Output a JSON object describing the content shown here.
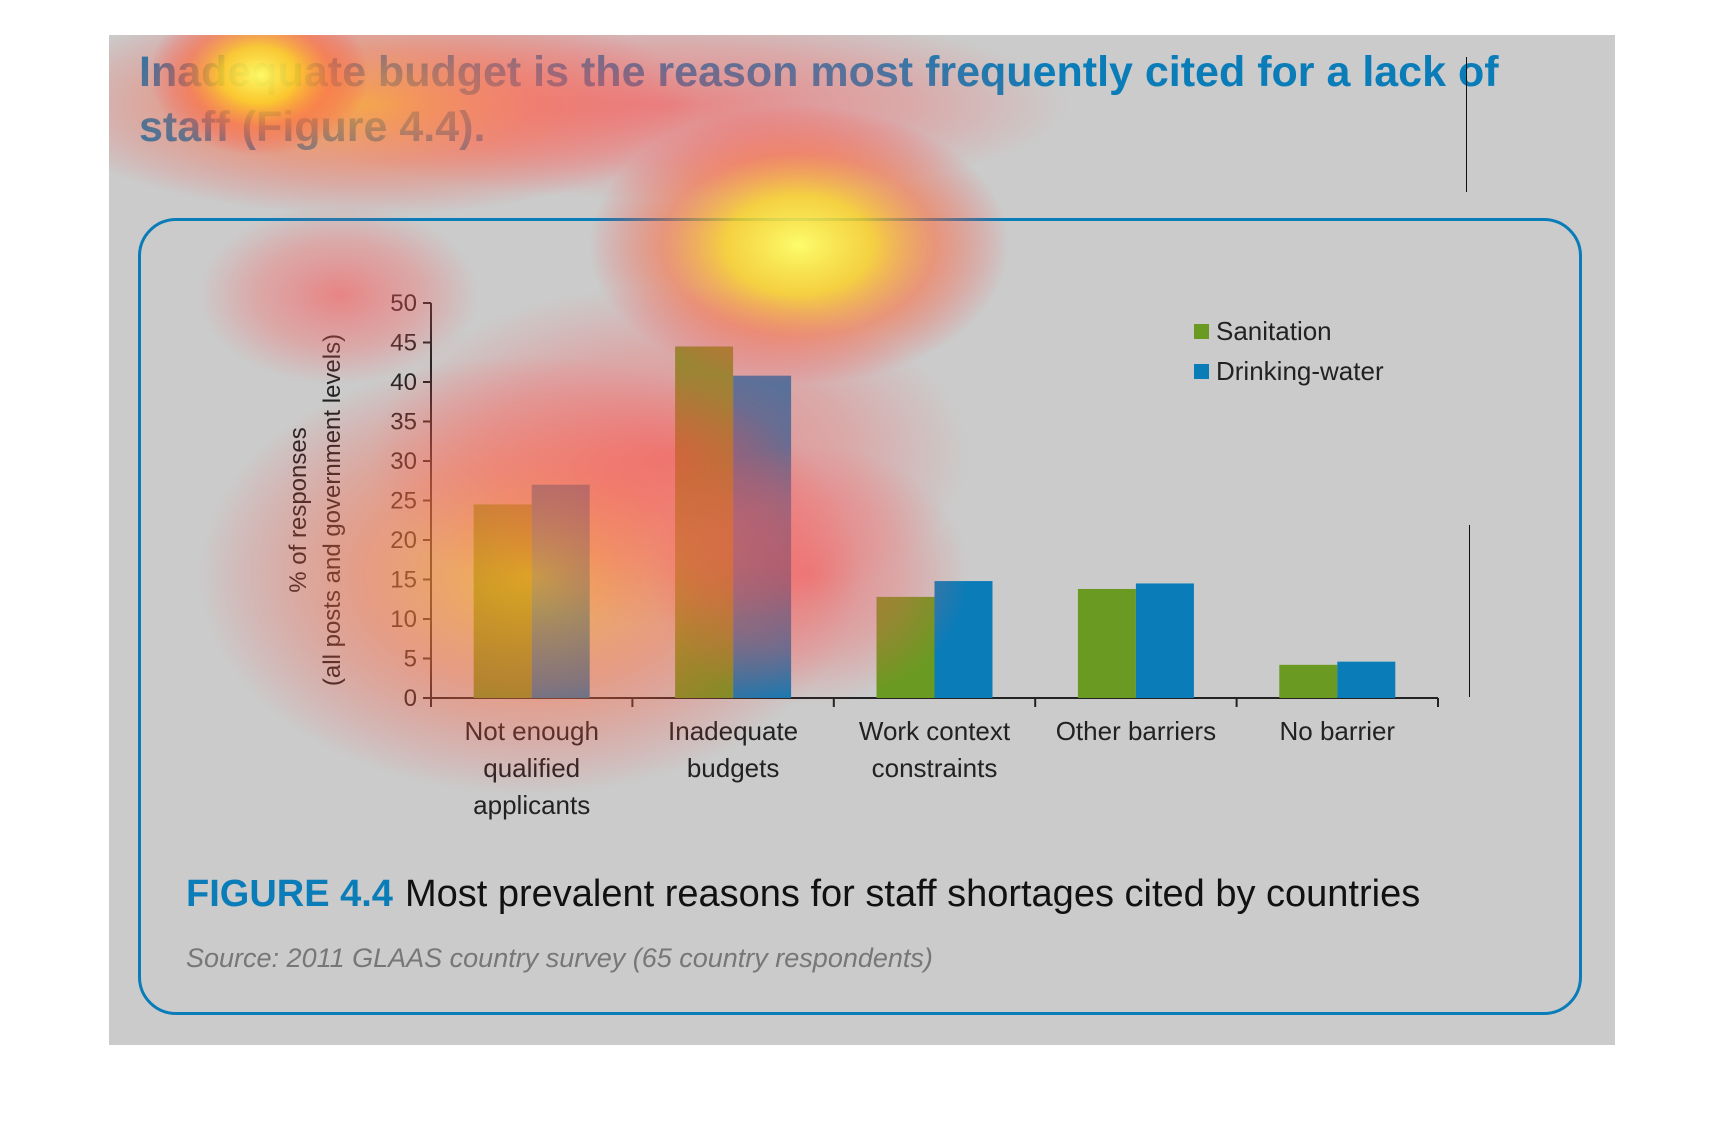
{
  "headline": "Inadequate budget is the reason most frequently cited for a lack of staff (Figure 4.4).",
  "figure": {
    "label": "FIGURE 4.4",
    "caption": "Most prevalent reasons for staff shortages cited by countries",
    "source": "Source: 2011 GLAAS country survey (65 country respondents)"
  },
  "chart_data": {
    "type": "bar",
    "title": "",
    "ylabel_lines": [
      "% of responses",
      "(all posts and government levels)"
    ],
    "xlabel": "",
    "ylim": [
      0,
      50
    ],
    "yticks": [
      0,
      5,
      10,
      15,
      20,
      25,
      30,
      35,
      40,
      45,
      50
    ],
    "categories": [
      [
        "Not enough",
        "qualified",
        "applicants"
      ],
      [
        "Inadequate",
        "budgets"
      ],
      [
        "Work context",
        "constraints"
      ],
      [
        "Other barriers"
      ],
      [
        "No barrier"
      ]
    ],
    "series": [
      {
        "name": "Sanitation",
        "color": "#6a9a22",
        "values": [
          24.5,
          44.5,
          12.8,
          13.8,
          4.2
        ]
      },
      {
        "name": "Drinking-water",
        "color": "#0a7cb8",
        "values": [
          27,
          40.8,
          14.8,
          14.5,
          4.6
        ]
      }
    ],
    "legend_position": "top-right",
    "grid": false
  }
}
